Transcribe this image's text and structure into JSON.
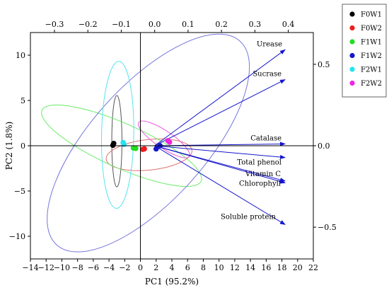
{
  "chart_data": {
    "type": "biplot",
    "xlabel": "PC1 (95.2%)",
    "ylabel": "PC2 (1.8%)",
    "xlim": [
      -14,
      22
    ],
    "ylim": [
      -12.5,
      12.5
    ],
    "x_ticks": [
      -14,
      -12,
      -10,
      -8,
      -6,
      -4,
      -2,
      0,
      2,
      4,
      6,
      8,
      10,
      12,
      14,
      16,
      18,
      20,
      22
    ],
    "y_ticks": [
      -10,
      -5,
      0,
      5,
      10
    ],
    "top_axis": {
      "lim": [
        -0.372,
        0.475
      ],
      "ticks": [
        -0.3,
        -0.2,
        -0.1,
        0.0,
        0.1,
        0.2,
        0.3,
        0.4
      ],
      "tick_labels": [
        "-0.3",
        "-0.2",
        "-0.1",
        "0.0",
        "0.1",
        "0.2",
        "0.3",
        "0.4"
      ]
    },
    "right_axis": {
      "lim": [
        -0.695,
        0.695
      ],
      "ticks": [
        0.5,
        0.0,
        -0.5
      ],
      "tick_labels": [
        "0.5",
        "0.0",
        "-0.5"
      ]
    },
    "legend": {
      "position": "outside-top-right",
      "entries": [
        {
          "name": "F0W1",
          "color": "#000000"
        },
        {
          "name": "F0W2",
          "color": "#ee1c1c"
        },
        {
          "name": "F1W1",
          "color": "#22dd22"
        },
        {
          "name": "F1W2",
          "color": "#1515cc"
        },
        {
          "name": "F2W1",
          "color": "#22e5f0"
        },
        {
          "name": "F2W2",
          "color": "#f025e0"
        }
      ]
    },
    "points": [
      {
        "group": "F0W1",
        "x": -3.4,
        "y": 0.25
      },
      {
        "group": "F0W1",
        "x": -3.5,
        "y": 0.05
      },
      {
        "group": "F0W2",
        "x": 0.3,
        "y": -0.4
      },
      {
        "group": "F0W2",
        "x": 0.5,
        "y": -0.35
      },
      {
        "group": "F1W1",
        "x": -0.9,
        "y": -0.25
      },
      {
        "group": "F1W1",
        "x": -0.6,
        "y": -0.3
      },
      {
        "group": "F1W2",
        "x": 2.0,
        "y": -0.35
      },
      {
        "group": "F1W2",
        "x": 2.5,
        "y": 0.0
      },
      {
        "group": "F2W1",
        "x": -2.2,
        "y": 0.35
      },
      {
        "group": "F2W1",
        "x": -2.1,
        "y": 0.15
      },
      {
        "group": "F2W2",
        "x": 3.5,
        "y": 0.55
      },
      {
        "group": "F2W2",
        "x": 3.7,
        "y": 0.4
      }
    ],
    "ellipses": [
      {
        "group": "F0W1",
        "cx": -3.0,
        "cy": 0.5,
        "rx": 0.6,
        "ry": 5.4,
        "angle": 0,
        "color": "#555555"
      },
      {
        "group": "F0W2",
        "cx": 1.1,
        "cy": -1.0,
        "rx": 5.1,
        "ry": 1.8,
        "angle": 6,
        "color": "#e07070"
      },
      {
        "group": "F1W1",
        "cx": -2.4,
        "cy": 0.0,
        "rx": 10.3,
        "ry": 2.6,
        "angle": -24,
        "color": "#66ee66"
      },
      {
        "group": "F1W2",
        "cx": 1.0,
        "cy": 0.3,
        "rx": 16.2,
        "ry": 6.8,
        "angle": 48,
        "color": "#7777dd"
      },
      {
        "group": "F2W1",
        "cx": -2.9,
        "cy": 1.2,
        "rx": 1.9,
        "ry": 8.7,
        "angle": -1,
        "color": "#55e5f0"
      },
      {
        "group": "F2W2",
        "cx": 3.0,
        "cy": 0.7,
        "rx": 3.6,
        "ry": 1.0,
        "angle": -34,
        "color": "#ee55dd"
      }
    ],
    "loadings": {
      "origin": [
        1.8,
        0.0
      ],
      "color": "#1515cc",
      "vectors": [
        {
          "name": "Urease",
          "x": 18.4,
          "y": 10.6
        },
        {
          "name": "Sucrase",
          "x": 18.4,
          "y": 7.3
        },
        {
          "name": "Catalase",
          "x": 18.4,
          "y": 0.2
        },
        {
          "name": "Total phenol",
          "x": 18.4,
          "y": -1.3
        },
        {
          "name": "Vitamin C",
          "x": 18.4,
          "y": -3.9
        },
        {
          "name": "Chlorophyll",
          "x": 18.4,
          "y": -4.1
        },
        {
          "name": "Soluble protein",
          "x": 18.4,
          "y": -8.7
        }
      ]
    }
  }
}
